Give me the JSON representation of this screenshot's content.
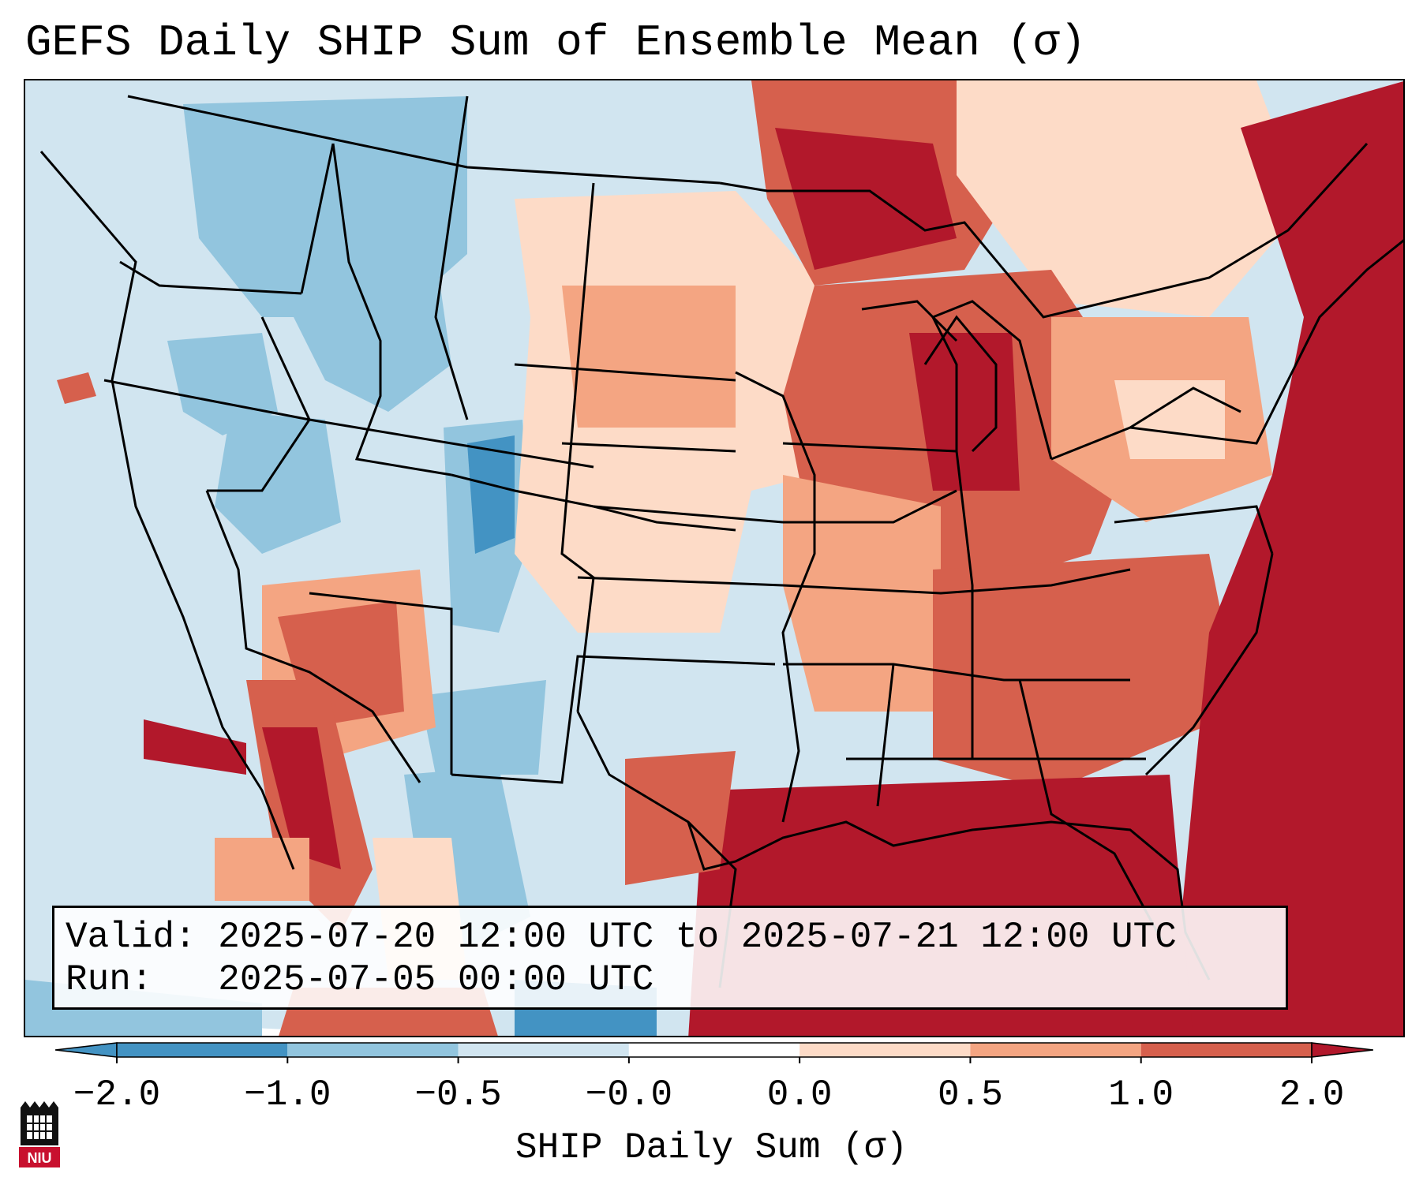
{
  "title": "GEFS Daily SHIP Sum of Ensemble Mean (σ)",
  "info": {
    "valid_line": "Valid: 2025-07-20 12:00 UTC to 2025-07-21 12:00 UTC",
    "run_line": "Run:   2025-07-05 00:00 UTC"
  },
  "colorbar": {
    "label": "SHIP Daily Sum (σ)",
    "ticks": [
      "−2.0",
      "−1.0",
      "−0.5",
      "−0.0",
      "0.0",
      "0.5",
      "1.0",
      "2.0"
    ],
    "bins": [
      {
        "from": "min",
        "to": "-2.0",
        "color": "#4393c3"
      },
      {
        "from": "-2.0",
        "to": "-1.0",
        "color": "#4393c3"
      },
      {
        "from": "-1.0",
        "to": "-0.5",
        "color": "#92c5de"
      },
      {
        "from": "-0.5",
        "to": "-0.0",
        "color": "#d1e5f0"
      },
      {
        "from": "-0.0",
        "to": "0.0",
        "color": "#ffffff"
      },
      {
        "from": "0.0",
        "to": "0.5",
        "color": "#fddbc7"
      },
      {
        "from": "0.5",
        "to": "1.0",
        "color": "#f4a582"
      },
      {
        "from": "1.0",
        "to": "2.0",
        "color": "#d6604d"
      },
      {
        "from": "2.0",
        "to": "max",
        "color": "#b2182b"
      }
    ]
  },
  "map": {
    "projection": "Lambert conformal",
    "region": "Contiguous United States",
    "pattern": "negative (blue) anomalies over the West and Southwest, positive (red) anomalies over the Plains, Midwest, Northeast, Southeast, Gulf of Mexico and western Atlantic"
  },
  "logo": {
    "label": "NIU"
  }
}
